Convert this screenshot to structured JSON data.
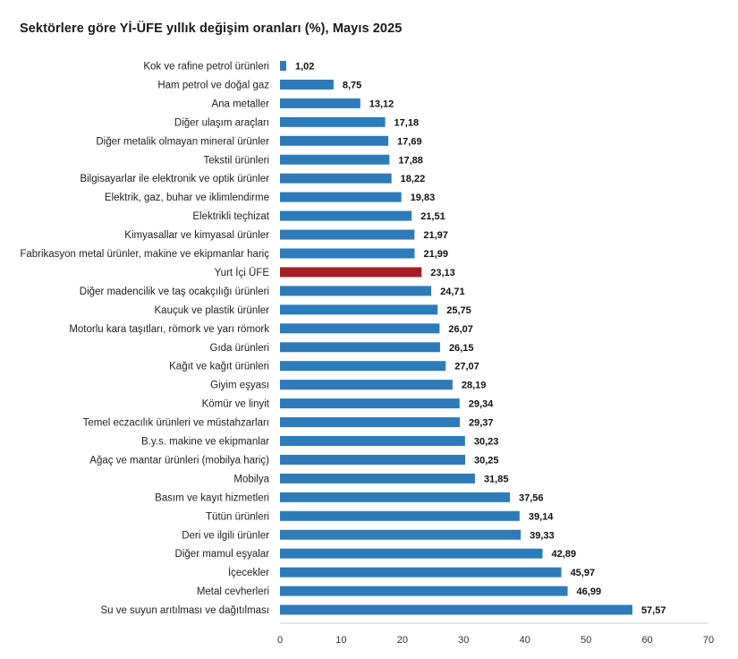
{
  "chart_data": {
    "type": "bar",
    "orientation": "horizontal",
    "title": "Sektörlere göre Yİ-ÜFE yıllık değişim oranları (%), Mayıs 2025",
    "categories": [
      "Kok ve rafine petrol ürünleri",
      "Ham petrol ve doğal gaz",
      "Ana metaller",
      "Diğer ulaşım araçları",
      "Diğer metalik olmayan mineral ürünler",
      "Tekstil ürünleri",
      "Bilgisayarlar ile elektronik ve optik ürünler",
      "Elektrik, gaz, buhar ve iklimlendirme",
      "Elektrikli teçhizat",
      "Kimyasallar ve kimyasal ürünler",
      "Fabrikasyon metal ürünler, makine ve ekipmanlar hariç",
      "Yurt İçi ÜFE",
      "Diğer madencilik ve taş ocakçılığı ürünleri",
      "Kauçuk ve plastik ürünler",
      "Motorlu kara taşıtları, römork ve yarı römork",
      "Gıda ürünleri",
      "Kağıt ve kağıt ürünleri",
      "Giyim eşyası",
      "Kömür ve linyit",
      "Temel eczacılık ürünleri ve müstahzarları",
      "B.y.s. makine ve ekipmanlar",
      "Ağaç ve mantar ürünleri (mobilya hariç)",
      "Mobilya",
      "Basım ve kayıt hizmetleri",
      "Tütün ürünleri",
      "Deri ve ilgili ürünler",
      "Diğer mamul eşyalar",
      "İçecekler",
      "Metal cevherleri",
      "Su ve suyun arıtılması ve dağıtılması"
    ],
    "values": [
      1.02,
      8.75,
      13.12,
      17.18,
      17.69,
      17.88,
      18.22,
      19.83,
      21.51,
      21.97,
      21.99,
      23.13,
      24.71,
      25.75,
      26.07,
      26.15,
      27.07,
      28.19,
      29.34,
      29.37,
      30.23,
      30.25,
      31.85,
      37.56,
      39.14,
      39.33,
      42.89,
      45.97,
      46.99,
      57.57
    ],
    "value_labels": [
      "1,02",
      "8,75",
      "13,12",
      "17,18",
      "17,69",
      "17,88",
      "18,22",
      "19,83",
      "21,51",
      "21,97",
      "21,99",
      "23,13",
      "24,71",
      "25,75",
      "26,07",
      "26,15",
      "27,07",
      "28,19",
      "29,34",
      "29,37",
      "30,23",
      "30,25",
      "31,85",
      "37,56",
      "39,14",
      "39,33",
      "42,89",
      "45,97",
      "46,99",
      "57,57"
    ],
    "highlight_category": "Yurt İçi ÜFE",
    "xlim": [
      0,
      70
    ],
    "xticks": [
      0,
      10,
      20,
      30,
      40,
      50,
      60,
      70
    ],
    "grid": false,
    "legend": "none",
    "colors": {
      "bar": "#2E7BBA",
      "highlight": "#A31F24",
      "axis": "#cccccc"
    }
  }
}
